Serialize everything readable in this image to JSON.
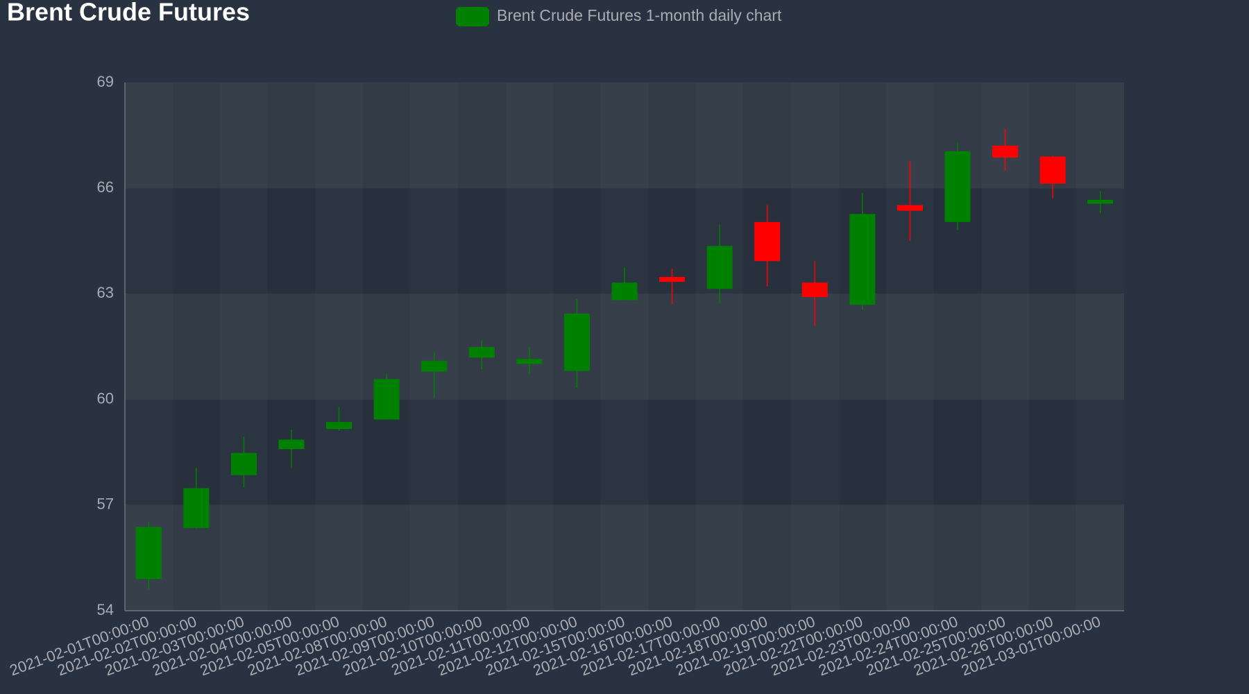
{
  "chart_data": {
    "type": "candlestick",
    "title": "Brent Crude Futures",
    "x": [
      "2021-02-01T00:00:00",
      "2021-02-02T00:00:00",
      "2021-02-03T00:00:00",
      "2021-02-04T00:00:00",
      "2021-02-05T00:00:00",
      "2021-02-08T00:00:00",
      "2021-02-09T00:00:00",
      "2021-02-10T00:00:00",
      "2021-02-11T00:00:00",
      "2021-02-12T00:00:00",
      "2021-02-15T00:00:00",
      "2021-02-16T00:00:00",
      "2021-02-17T00:00:00",
      "2021-02-18T00:00:00",
      "2021-02-19T00:00:00",
      "2021-02-22T00:00:00",
      "2021-02-23T00:00:00",
      "2021-02-24T00:00:00",
      "2021-02-25T00:00:00",
      "2021-02-26T00:00:00",
      "2021-03-01T00:00:00"
    ],
    "series": [
      {
        "name": "Brent Crude Futures 1-month daily chart",
        "color": "#008000",
        "down_color": "#ff0000",
        "open": [
          54.9,
          56.35,
          57.85,
          58.59,
          59.16,
          59.43,
          60.79,
          61.19,
          61.01,
          60.81,
          62.82,
          63.48,
          63.14,
          65.04,
          63.32,
          62.69,
          65.52,
          65.04,
          67.21,
          66.9,
          65.56
        ],
        "high": [
          56.53,
          58.05,
          58.95,
          59.14,
          59.79,
          60.72,
          61.33,
          61.69,
          61.49,
          62.85,
          63.75,
          63.71,
          64.97,
          65.52,
          63.93,
          65.86,
          66.78,
          67.3,
          67.69,
          66.92,
          65.92
        ],
        "low": [
          54.61,
          56.33,
          57.51,
          58.05,
          59.11,
          59.43,
          60.04,
          60.86,
          60.72,
          60.33,
          62.82,
          62.71,
          62.73,
          63.21,
          62.1,
          62.55,
          64.5,
          64.81,
          66.49,
          65.72,
          65.29
        ],
        "close": [
          56.38,
          57.48,
          58.48,
          58.86,
          59.36,
          60.58,
          61.1,
          61.49,
          61.15,
          62.44,
          63.32,
          63.34,
          64.36,
          63.93,
          62.91,
          65.27,
          65.36,
          67.05,
          66.87,
          66.13,
          65.67
        ]
      }
    ],
    "ylim": [
      54,
      69
    ],
    "yticks": [
      54,
      57,
      60,
      63,
      66,
      69
    ],
    "grid": true
  }
}
